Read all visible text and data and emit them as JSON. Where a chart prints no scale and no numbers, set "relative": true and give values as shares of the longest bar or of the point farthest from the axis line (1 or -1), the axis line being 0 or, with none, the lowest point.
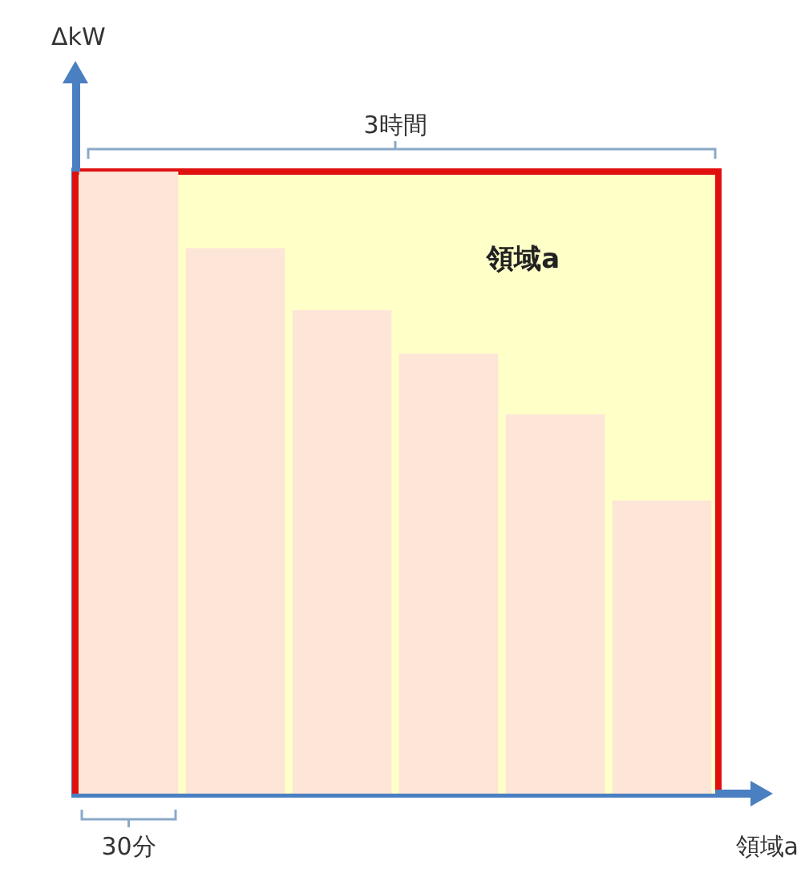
{
  "chart_data": {
    "type": "bar",
    "relative": true,
    "categories": [
      null,
      null,
      null,
      null,
      null,
      null
    ],
    "series": [
      {
        "color": "#fde6d8",
        "values": [
          1,
          0.877,
          0.777,
          0.707,
          0.61,
          0.471
        ]
      }
    ],
    "xlabel": "領域a",
    "annotations": [
      "ΔkW",
      "3時間",
      "30分",
      "領域a"
    ],
    "legend": false
  }
}
